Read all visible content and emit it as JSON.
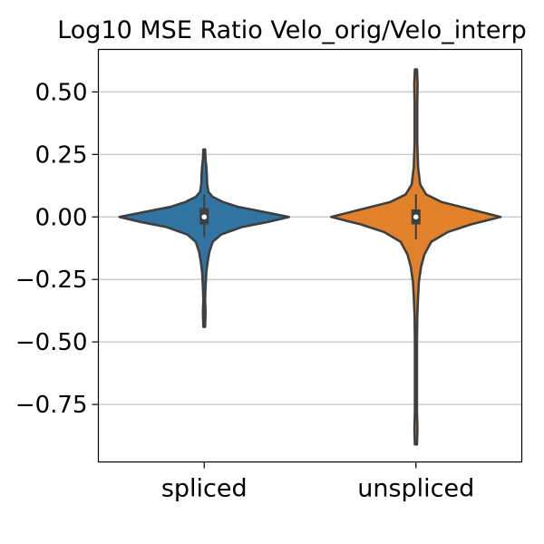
{
  "chart_data": {
    "type": "violin",
    "title": "Log10 MSE Ratio Velo_orig/Velo_interp",
    "xlabel": "",
    "ylabel": "",
    "ylim": [
      -0.98,
      0.67
    ],
    "grid": "horizontal",
    "yticks": [
      {
        "value": 0.5,
        "label": "0.50"
      },
      {
        "value": 0.25,
        "label": "0.25"
      },
      {
        "value": 0.0,
        "label": "0.00"
      },
      {
        "value": -0.25,
        "label": "−0.25"
      },
      {
        "value": -0.5,
        "label": "−0.50"
      },
      {
        "value": -0.75,
        "label": "−0.75"
      }
    ],
    "categories": [
      "spliced",
      "unspliced"
    ],
    "series": [
      {
        "category": "spliced",
        "color": "#3274a1",
        "min": -0.44,
        "max": 0.27,
        "q1": -0.03,
        "median": 0.0,
        "q3": 0.035,
        "whisker_low": -0.08,
        "whisker_high": 0.09,
        "density": [
          [
            -0.44,
            0.01
          ],
          [
            -0.38,
            0.015
          ],
          [
            -0.33,
            0.01
          ],
          [
            -0.28,
            0.015
          ],
          [
            -0.22,
            0.025
          ],
          [
            -0.18,
            0.04
          ],
          [
            -0.14,
            0.06
          ],
          [
            -0.1,
            0.1
          ],
          [
            -0.07,
            0.2
          ],
          [
            -0.04,
            0.45
          ],
          [
            -0.02,
            0.75
          ],
          [
            0.0,
            1.0
          ],
          [
            0.02,
            0.7
          ],
          [
            0.04,
            0.4
          ],
          [
            0.06,
            0.22
          ],
          [
            0.08,
            0.1
          ],
          [
            0.1,
            0.05
          ],
          [
            0.13,
            0.035
          ],
          [
            0.17,
            0.03
          ],
          [
            0.2,
            0.025
          ],
          [
            0.23,
            0.015
          ],
          [
            0.27,
            0.01
          ]
        ]
      },
      {
        "category": "unspliced",
        "color": "#e1812c",
        "min": -0.91,
        "max": 0.59,
        "q1": -0.03,
        "median": 0.0,
        "q3": 0.03,
        "whisker_low": -0.09,
        "whisker_high": 0.09,
        "density": [
          [
            -0.91,
            0.012
          ],
          [
            -0.85,
            0.018
          ],
          [
            -0.78,
            0.012
          ],
          [
            -0.7,
            0.012
          ],
          [
            -0.6,
            0.012
          ],
          [
            -0.5,
            0.012
          ],
          [
            -0.4,
            0.015
          ],
          [
            -0.32,
            0.025
          ],
          [
            -0.26,
            0.035
          ],
          [
            -0.2,
            0.06
          ],
          [
            -0.15,
            0.1
          ],
          [
            -0.1,
            0.18
          ],
          [
            -0.06,
            0.38
          ],
          [
            -0.03,
            0.65
          ],
          [
            0.0,
            1.0
          ],
          [
            0.03,
            0.65
          ],
          [
            0.06,
            0.3
          ],
          [
            0.09,
            0.12
          ],
          [
            0.13,
            0.05
          ],
          [
            0.2,
            0.025
          ],
          [
            0.3,
            0.015
          ],
          [
            0.45,
            0.015
          ],
          [
            0.53,
            0.02
          ],
          [
            0.59,
            0.012
          ]
        ]
      }
    ]
  }
}
